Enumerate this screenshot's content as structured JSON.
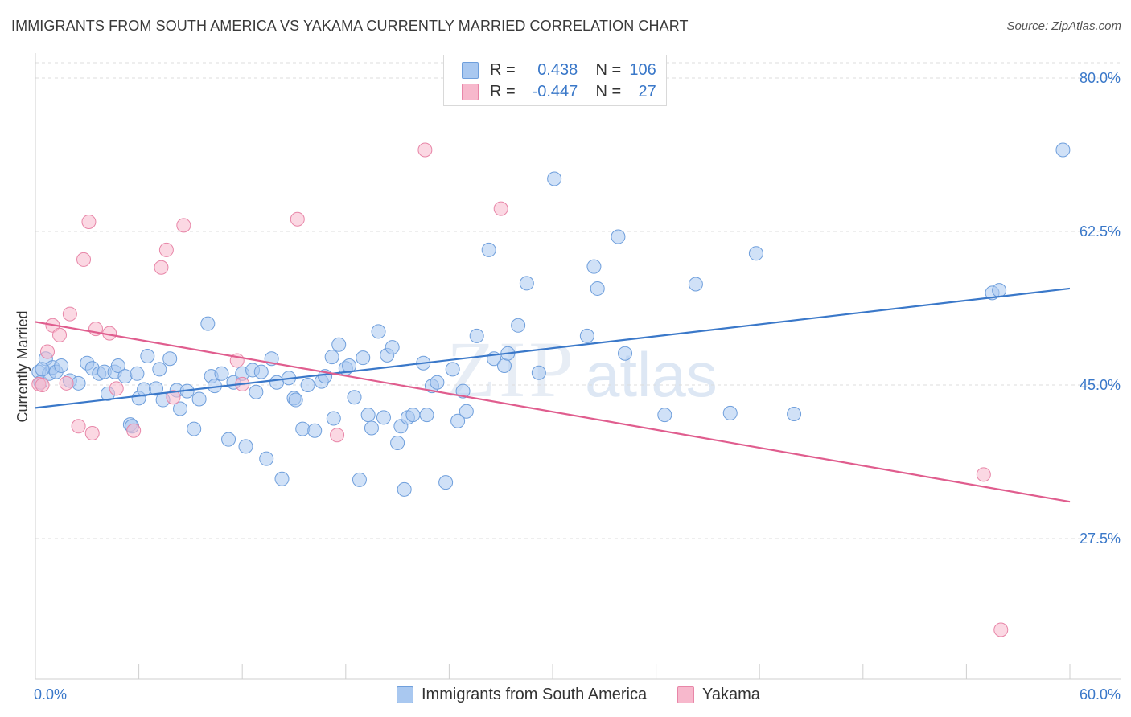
{
  "title": "IMMIGRANTS FROM SOUTH AMERICA VS YAKAMA CURRENTLY MARRIED CORRELATION CHART",
  "source": "Source: ZipAtlas.com",
  "watermark": {
    "zip": "ZIP",
    "atlas": "atlas"
  },
  "legend": {
    "r_label": "R =",
    "n_label": "N =",
    "rows": [
      {
        "r": "0.438",
        "n": "106",
        "color": "#a9c8f0",
        "border": "#6f9fdc"
      },
      {
        "r": "-0.447",
        "n": "27",
        "color": "#f7b8cc",
        "border": "#e886a8"
      }
    ]
  },
  "bottom_legend": [
    {
      "label": "Immigrants from South America",
      "color": "#a9c8f0",
      "border": "#6f9fdc"
    },
    {
      "label": "Yakama",
      "color": "#f7b8cc",
      "border": "#e886a8"
    }
  ],
  "colors": {
    "blue": "#3a78c9",
    "blue_fill": "#a9c8f0",
    "pink": "#e05d8e",
    "pink_fill": "#f7b8cc",
    "grid": "#dcdcdc"
  },
  "chart_data": {
    "type": "scatter",
    "xlabel": "",
    "ylabel": "Currently Married",
    "xlim": [
      0,
      60
    ],
    "ylim": [
      10,
      83
    ],
    "x_tick_labels": [
      {
        "value": 0,
        "label": "0.0%"
      },
      {
        "value": 60,
        "label": "60.0%"
      }
    ],
    "y_tick_labels": [
      {
        "value": 80,
        "label": "80.0%"
      },
      {
        "value": 62.5,
        "label": "62.5%"
      },
      {
        "value": 45,
        "label": "45.0%"
      },
      {
        "value": 27.5,
        "label": "27.5%"
      }
    ],
    "x_minor_ticks": [
      0,
      6,
      12,
      18,
      24,
      30,
      36,
      42,
      48,
      54,
      60
    ],
    "grid": "horizontal dashed",
    "series": [
      {
        "name": "Immigrants from South America",
        "color": "#3a78c9",
        "trend": [
          [
            0,
            42.4
          ],
          [
            60,
            56.0
          ]
        ],
        "points": [
          [
            0.2,
            46.5
          ],
          [
            0.3,
            45.3
          ],
          [
            0.6,
            48.0
          ],
          [
            0.8,
            46.3
          ],
          [
            1.0,
            47.0
          ],
          [
            1.2,
            46.5
          ],
          [
            1.5,
            47.2
          ],
          [
            2.0,
            45.5
          ],
          [
            2.5,
            45.2
          ],
          [
            3.0,
            47.5
          ],
          [
            3.3,
            46.9
          ],
          [
            3.7,
            46.3
          ],
          [
            4.0,
            46.5
          ],
          [
            4.2,
            44.0
          ],
          [
            4.6,
            46.5
          ],
          [
            4.8,
            47.2
          ],
          [
            5.2,
            46.0
          ],
          [
            5.5,
            40.5
          ],
          [
            5.6,
            40.3
          ],
          [
            5.9,
            46.3
          ],
          [
            6.0,
            43.5
          ],
          [
            6.3,
            44.5
          ],
          [
            6.5,
            48.3
          ],
          [
            7.0,
            44.6
          ],
          [
            7.2,
            46.8
          ],
          [
            7.4,
            43.3
          ],
          [
            7.8,
            48.0
          ],
          [
            8.2,
            44.4
          ],
          [
            8.4,
            42.3
          ],
          [
            8.8,
            44.3
          ],
          [
            9.2,
            40.0
          ],
          [
            9.5,
            43.4
          ],
          [
            10.0,
            52.0
          ],
          [
            10.2,
            46.0
          ],
          [
            10.4,
            44.9
          ],
          [
            10.8,
            46.3
          ],
          [
            11.2,
            38.8
          ],
          [
            11.5,
            45.3
          ],
          [
            12.0,
            46.3
          ],
          [
            12.2,
            38.0
          ],
          [
            12.6,
            46.7
          ],
          [
            12.8,
            44.2
          ],
          [
            13.1,
            46.5
          ],
          [
            13.4,
            36.6
          ],
          [
            13.7,
            48.0
          ],
          [
            14.0,
            45.3
          ],
          [
            14.3,
            34.3
          ],
          [
            14.7,
            45.8
          ],
          [
            15.0,
            43.5
          ],
          [
            15.1,
            43.3
          ],
          [
            15.5,
            40.0
          ],
          [
            15.8,
            45.0
          ],
          [
            16.2,
            39.8
          ],
          [
            16.6,
            45.4
          ],
          [
            16.8,
            46.0
          ],
          [
            17.2,
            48.2
          ],
          [
            17.3,
            41.2
          ],
          [
            17.6,
            49.6
          ],
          [
            18.0,
            46.9
          ],
          [
            18.2,
            47.2
          ],
          [
            18.5,
            43.6
          ],
          [
            18.8,
            34.2
          ],
          [
            19.0,
            48.1
          ],
          [
            19.3,
            41.6
          ],
          [
            19.5,
            40.1
          ],
          [
            19.9,
            51.1
          ],
          [
            20.2,
            41.3
          ],
          [
            20.4,
            48.4
          ],
          [
            20.7,
            49.3
          ],
          [
            21.0,
            38.4
          ],
          [
            21.2,
            40.3
          ],
          [
            21.4,
            33.1
          ],
          [
            21.6,
            41.3
          ],
          [
            21.9,
            41.6
          ],
          [
            22.5,
            47.5
          ],
          [
            22.7,
            41.6
          ],
          [
            23.0,
            44.9
          ],
          [
            23.3,
            45.3
          ],
          [
            23.8,
            33.9
          ],
          [
            24.2,
            46.8
          ],
          [
            24.5,
            40.9
          ],
          [
            24.8,
            44.3
          ],
          [
            25.0,
            42.0
          ],
          [
            25.6,
            50.6
          ],
          [
            26.3,
            60.4
          ],
          [
            26.6,
            48.0
          ],
          [
            27.2,
            47.2
          ],
          [
            27.4,
            48.6
          ],
          [
            28.0,
            51.8
          ],
          [
            28.5,
            56.6
          ],
          [
            29.2,
            46.4
          ],
          [
            30.1,
            68.5
          ],
          [
            32.0,
            50.6
          ],
          [
            32.4,
            58.5
          ],
          [
            32.6,
            56.0
          ],
          [
            33.8,
            61.9
          ],
          [
            34.2,
            48.6
          ],
          [
            36.5,
            41.6
          ],
          [
            38.3,
            56.5
          ],
          [
            40.3,
            41.8
          ],
          [
            41.8,
            60.0
          ],
          [
            44.0,
            41.7
          ],
          [
            55.5,
            55.5
          ],
          [
            55.9,
            55.8
          ],
          [
            59.6,
            71.8
          ],
          [
            0.4,
            46.8
          ]
        ]
      },
      {
        "name": "Yakama",
        "color": "#e05d8e",
        "trend": [
          [
            0,
            52.2
          ],
          [
            60,
            31.7
          ]
        ],
        "points": [
          [
            0.2,
            45.1
          ],
          [
            0.4,
            45.0
          ],
          [
            0.7,
            48.8
          ],
          [
            1.0,
            51.8
          ],
          [
            1.4,
            50.7
          ],
          [
            1.8,
            45.2
          ],
          [
            2.0,
            53.1
          ],
          [
            2.5,
            40.3
          ],
          [
            2.8,
            59.3
          ],
          [
            3.1,
            63.6
          ],
          [
            3.3,
            39.5
          ],
          [
            3.5,
            51.4
          ],
          [
            4.3,
            50.9
          ],
          [
            4.7,
            44.6
          ],
          [
            5.7,
            39.8
          ],
          [
            7.3,
            58.4
          ],
          [
            7.6,
            60.4
          ],
          [
            8.0,
            43.6
          ],
          [
            8.6,
            63.2
          ],
          [
            11.7,
            47.8
          ],
          [
            12.0,
            45.1
          ],
          [
            15.2,
            63.9
          ],
          [
            17.5,
            39.3
          ],
          [
            22.6,
            71.8
          ],
          [
            27.0,
            65.1
          ],
          [
            55.0,
            34.8
          ],
          [
            56.0,
            17.1
          ]
        ]
      }
    ]
  }
}
